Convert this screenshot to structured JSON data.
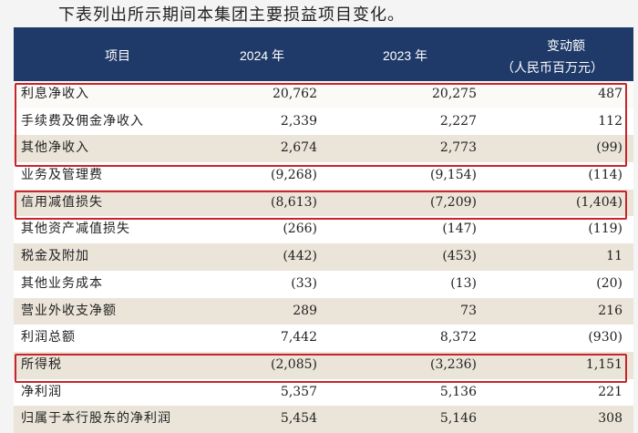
{
  "header": {
    "title": "下表列出所示期间本集团主要损益项目变化。"
  },
  "table": {
    "columns": [
      "项目",
      "2024 年",
      "2023 年",
      "变动额"
    ],
    "unit": "（人民币百万元）",
    "rows": [
      [
        "利息净收入",
        "20,762",
        "20,275",
        "487"
      ],
      [
        "手续费及佣金净收入",
        "2,339",
        "2,227",
        "112"
      ],
      [
        "其他净收入",
        "2,674",
        "2,773",
        "(99)"
      ],
      [
        "业务及管理费",
        "(9,268)",
        "(9,154)",
        "(114)"
      ],
      [
        "信用减值损失",
        "(8,613)",
        "(7,209)",
        "(1,404)"
      ],
      [
        "其他资产减值损失",
        "(266)",
        "(147)",
        "(119)"
      ],
      [
        "税金及附加",
        "(442)",
        "(453)",
        "11"
      ],
      [
        "其他业务成本",
        "(33)",
        "(13)",
        "(20)"
      ],
      [
        "营业外收支净额",
        "289",
        "73",
        "216"
      ],
      [
        "利润总额",
        "7,442",
        "8,372",
        "(930)"
      ],
      [
        "所得税",
        "(2,085)",
        "(3,236)",
        "1,151"
      ],
      [
        "净利润",
        "5,357",
        "5,136",
        "221"
      ],
      [
        "归属于本行股东的净利润",
        "5,454",
        "5,146",
        "308"
      ]
    ]
  }
}
